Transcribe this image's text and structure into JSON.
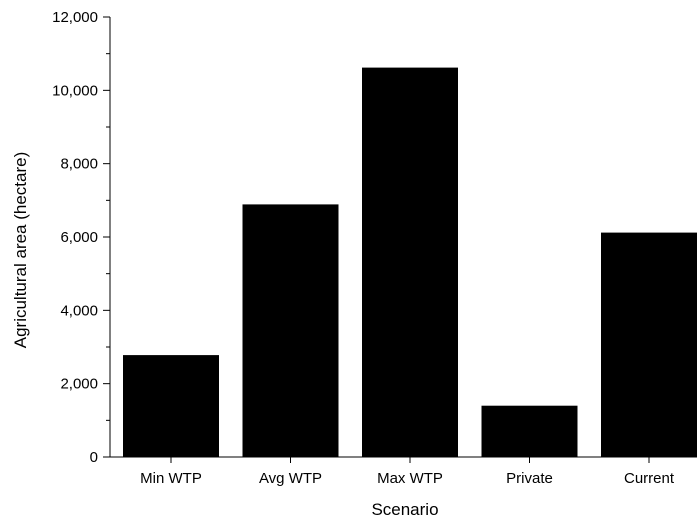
{
  "chart_data": {
    "type": "bar",
    "categories": [
      "Min WTP",
      "Avg WTP",
      "Max WTP",
      "Private",
      "Current"
    ],
    "values": [
      2780,
      6890,
      10620,
      1400,
      6120
    ],
    "xlabel": "Scenario",
    "ylabel": "Agricultural area (hectare)",
    "ylim": [
      0,
      12000
    ],
    "yticks": [
      0,
      2000,
      4000,
      6000,
      8000,
      10000,
      12000
    ],
    "ytick_labels": [
      "0",
      "2,000",
      "4,000",
      "6,000",
      "8,000",
      "10,000",
      "12,000"
    ],
    "grid": false,
    "bar_color": "#000000"
  }
}
